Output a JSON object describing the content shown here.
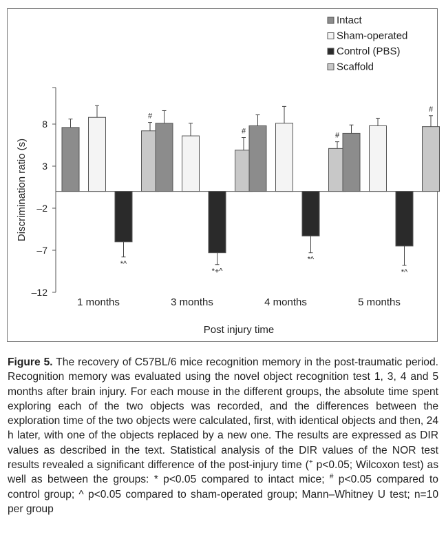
{
  "chart_data": {
    "type": "bar",
    "title": "",
    "xlabel": "Post injury time",
    "ylabel": "Discrimination ratio (s)",
    "ylim": [
      -12,
      12
    ],
    "yticks": [
      8,
      3,
      -2,
      -7,
      -12
    ],
    "ytick_labels": [
      "8",
      "3",
      "–2",
      "–7",
      "–12"
    ],
    "grid": false,
    "legend_position": "top-right",
    "categories": [
      "1 months",
      "3 months",
      "4 months",
      "5 months"
    ],
    "series": [
      {
        "name": "Intact",
        "color": "#8c8c8c",
        "values": [
          7.6,
          8.1,
          7.8,
          6.9
        ],
        "errors": [
          1.0,
          1.5,
          1.3,
          1.0
        ],
        "annotations": [
          "",
          "",
          "",
          ""
        ]
      },
      {
        "name": "Sham-operated",
        "color": "#f4f4f4",
        "values": [
          8.8,
          6.6,
          8.1,
          7.8
        ],
        "errors": [
          1.4,
          1.5,
          2.0,
          0.9
        ],
        "annotations": [
          "",
          "",
          "",
          ""
        ]
      },
      {
        "name": "Control (PBS)",
        "color": "#2a2a2a",
        "values": [
          -6.0,
          -7.3,
          -5.3,
          -6.5
        ],
        "errors": [
          1.8,
          1.4,
          2.0,
          2.3
        ],
        "annotations": [
          "*^",
          "*+^",
          "*^",
          "*^"
        ]
      },
      {
        "name": "Scaffold",
        "color": "#c8c8c8",
        "values": [
          7.2,
          4.9,
          5.1,
          7.7
        ],
        "errors": [
          1.0,
          1.5,
          0.8,
          1.3
        ],
        "annotations": [
          "#",
          "#",
          "#",
          "#"
        ]
      }
    ]
  },
  "caption": {
    "label": "Figure 5.",
    "text_part1": " The recovery of C57BL/6 mice recognition memory in the post-traumatic period. Recognition memory was evaluated using the novel object recognition test 1, 3, 4 and 5 months after brain injury. For each mouse in the different groups, the absolute time spent exploring each of the two objects was recorded, and the differences between the exploration time of the two objects were calculated, first, with identical objects and then, 24 h later, with one of the objects replaced by a new one. The results are expressed as DIR values as described in the text. Statistical analysis of the DIR values of the NOR test results revealed a significant difference of the post-injury time (",
    "sup_plus": "+",
    "text_part2": " p<0.05; Wilcoxon test) as well as between the groups: * p<0.05 compared to intact mice; ",
    "sup_hash": "#",
    "text_part3": " p<0.05 compared to control group; ^ p<0.05 compared to sham-operated group; Mann–Whitney U test; n=10 per group"
  }
}
